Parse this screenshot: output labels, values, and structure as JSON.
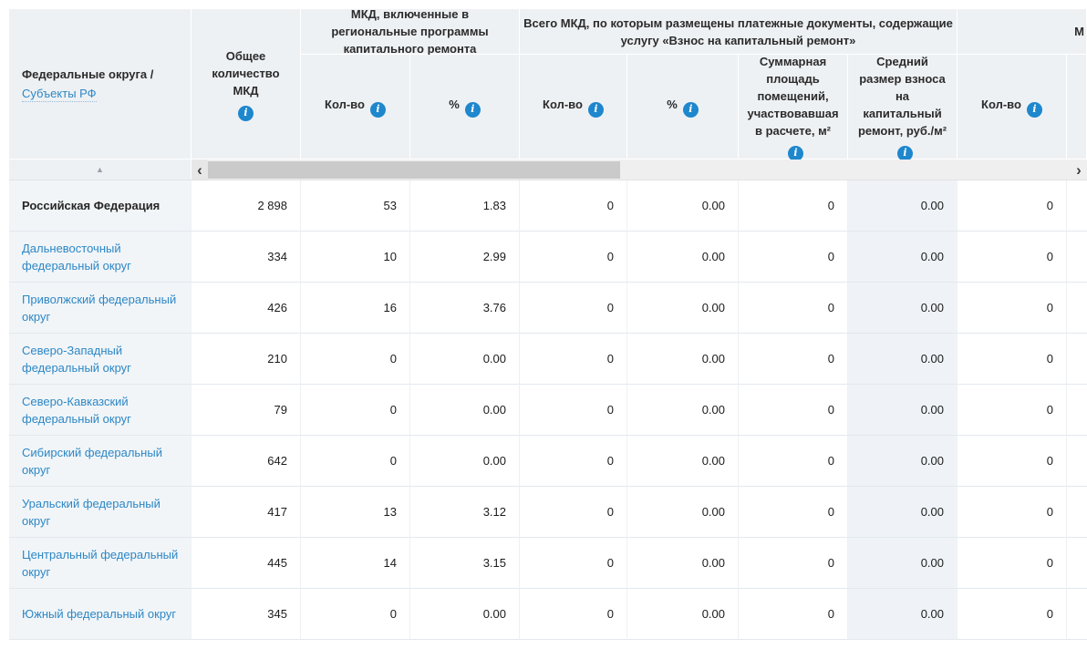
{
  "icons": {
    "info": "i",
    "sort_ascending": "▲",
    "scroll_left": "‹",
    "scroll_right": "›"
  },
  "colors": {
    "accent_blue": "#1e87cd",
    "link_blue": "#2d87c5",
    "header_bg": "#eef1f4",
    "row_header_bg": "#f1f5f8",
    "highlighted_column_bg": "#eff3f7"
  },
  "table": {
    "row_header": {
      "title": "Федеральные округа /",
      "link": "Субъекты РФ"
    },
    "total_column_label": "Общее количество МКД",
    "groups": [
      {
        "label": "МКД, включенные в региональные программы капитального ремонта"
      },
      {
        "label": "Всего МКД, по которым размещены платежные документы, содержащие услугу «Взнос на капитальный ремонт»"
      },
      {
        "label": "М"
      }
    ],
    "subcolumns": [
      {
        "label": "Кол-во"
      },
      {
        "label": "%"
      },
      {
        "label": "Кол-во"
      },
      {
        "label": "%"
      },
      {
        "label": "Суммарная площадь помещений, участвовавшая в расчете, м²"
      },
      {
        "label": "Средний размер взноса на капитальный ремонт, руб./м²"
      },
      {
        "label": "Кол-во"
      }
    ],
    "rows": [
      {
        "name": "Российская Федерация",
        "bold": true,
        "values": [
          "2 898",
          "53",
          "1.83",
          "0",
          "0.00",
          "0",
          "0.00",
          "0"
        ]
      },
      {
        "name": "Дальневосточный федеральный округ",
        "bold": false,
        "values": [
          "334",
          "10",
          "2.99",
          "0",
          "0.00",
          "0",
          "0.00",
          "0"
        ]
      },
      {
        "name": "Приволжский федеральный округ",
        "bold": false,
        "values": [
          "426",
          "16",
          "3.76",
          "0",
          "0.00",
          "0",
          "0.00",
          "0"
        ]
      },
      {
        "name": "Северо-Западный федеральный округ",
        "bold": false,
        "values": [
          "210",
          "0",
          "0.00",
          "0",
          "0.00",
          "0",
          "0.00",
          "0"
        ]
      },
      {
        "name": "Северо-Кавказский федеральный округ",
        "bold": false,
        "values": [
          "79",
          "0",
          "0.00",
          "0",
          "0.00",
          "0",
          "0.00",
          "0"
        ]
      },
      {
        "name": "Сибирский федеральный округ",
        "bold": false,
        "values": [
          "642",
          "0",
          "0.00",
          "0",
          "0.00",
          "0",
          "0.00",
          "0"
        ]
      },
      {
        "name": "Уральский федеральный округ",
        "bold": false,
        "values": [
          "417",
          "13",
          "3.12",
          "0",
          "0.00",
          "0",
          "0.00",
          "0"
        ]
      },
      {
        "name": "Центральный федеральный округ",
        "bold": false,
        "values": [
          "445",
          "14",
          "3.15",
          "0",
          "0.00",
          "0",
          "0.00",
          "0"
        ]
      },
      {
        "name": "Южный федеральный округ",
        "bold": false,
        "values": [
          "345",
          "0",
          "0.00",
          "0",
          "0.00",
          "0",
          "0.00",
          "0"
        ]
      }
    ]
  }
}
